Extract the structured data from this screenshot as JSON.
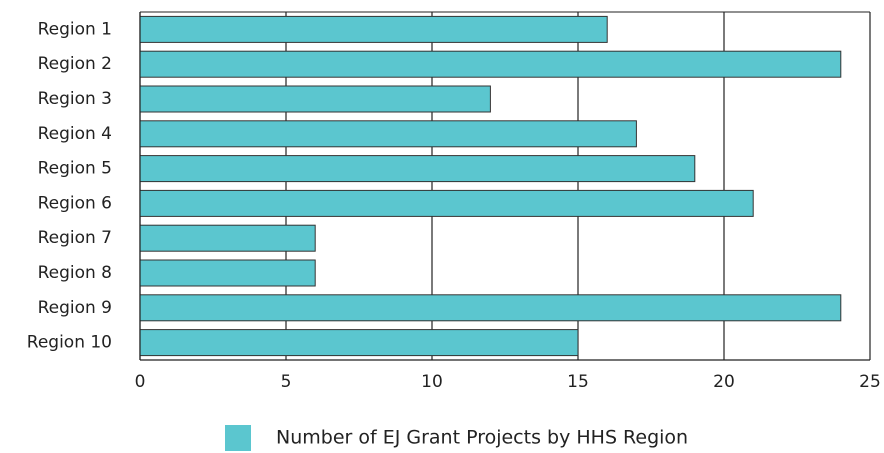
{
  "chart_data": {
    "type": "bar",
    "orientation": "horizontal",
    "categories": [
      "Region 1",
      "Region 2",
      "Region 3",
      "Region 4",
      "Region 5",
      "Region 6",
      "Region 7",
      "Region 8",
      "Region 9",
      "Region 10"
    ],
    "series": [
      {
        "name": "Number of EJ Grant Projects by HHS Region",
        "color": "#5bc6cf",
        "values": [
          16,
          24,
          12,
          17,
          19,
          21,
          6,
          6,
          24,
          15
        ]
      }
    ],
    "xlim": [
      0,
      25
    ],
    "xticks": [
      0,
      5,
      10,
      15,
      20,
      25
    ],
    "grid": true,
    "legend": "bottom"
  }
}
